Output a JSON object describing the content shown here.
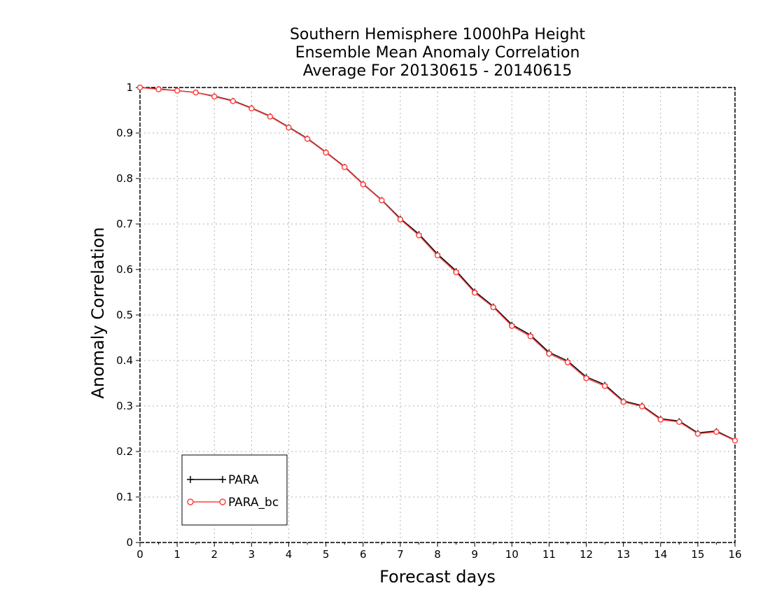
{
  "chart_data": {
    "type": "line",
    "title": [
      "Southern Hemisphere 1000hPa Height",
      "Ensemble Mean Anomaly Correlation",
      "Average For 20130615 - 20140615"
    ],
    "xlabel": "Forecast days",
    "ylabel": "Anomaly Correlation",
    "xlim": [
      0,
      16
    ],
    "ylim": [
      0,
      1
    ],
    "xticks": [
      "0",
      "1",
      "2",
      "3",
      "4",
      "5",
      "6",
      "7",
      "8",
      "9",
      "10",
      "11",
      "12",
      "13",
      "14",
      "15",
      "16"
    ],
    "yticks": [
      "0",
      "0.1",
      "0.2",
      "0.3",
      "0.4",
      "0.5",
      "0.6",
      "0.7",
      "0.8",
      "0.9",
      "1"
    ],
    "grid": true,
    "legend_position": "bottom-left",
    "x": [
      0,
      0.5,
      1,
      1.5,
      2,
      2.5,
      3,
      3.5,
      4,
      4.5,
      5,
      5.5,
      6,
      6.5,
      7,
      7.5,
      8,
      8.5,
      9,
      9.5,
      10,
      10.5,
      11,
      11.5,
      12,
      12.5,
      13,
      13.5,
      14,
      14.5,
      15,
      15.5,
      16
    ],
    "series": [
      {
        "name": "PARA",
        "color": "#000000",
        "marker": "plus",
        "values": [
          1.0,
          0.997,
          0.993,
          0.989,
          0.981,
          0.971,
          0.955,
          0.937,
          0.913,
          0.888,
          0.858,
          0.826,
          0.788,
          0.753,
          0.712,
          0.678,
          0.634,
          0.597,
          0.552,
          0.519,
          0.479,
          0.456,
          0.418,
          0.399,
          0.364,
          0.347,
          0.311,
          0.301,
          0.272,
          0.267,
          0.241,
          0.245,
          0.225
        ]
      },
      {
        "name": "PARA_bc",
        "color": "#ff4040",
        "marker": "circle",
        "values": [
          1.0,
          0.996,
          0.993,
          0.989,
          0.98,
          0.97,
          0.954,
          0.936,
          0.912,
          0.887,
          0.857,
          0.825,
          0.787,
          0.752,
          0.71,
          0.675,
          0.631,
          0.594,
          0.549,
          0.517,
          0.476,
          0.453,
          0.415,
          0.396,
          0.361,
          0.344,
          0.309,
          0.299,
          0.27,
          0.265,
          0.239,
          0.243,
          0.224
        ]
      }
    ]
  }
}
